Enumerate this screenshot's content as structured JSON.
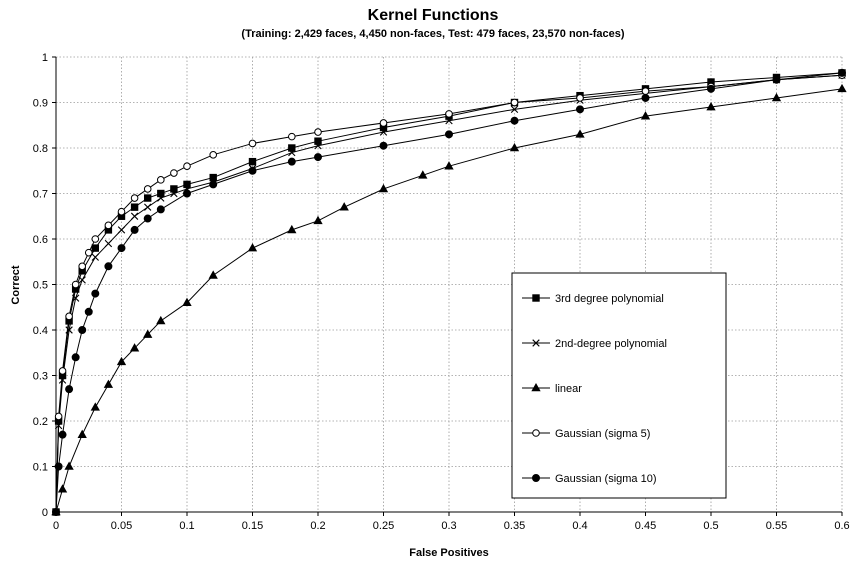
{
  "chart_data": {
    "type": "line",
    "title": "Kernel Functions",
    "subtitle": "(Training: 2,429 faces, 4,450 non-faces, Test: 479 faces, 23,570 non-faces)",
    "xlabel": "False Positives",
    "ylabel": "Correct",
    "xlim": [
      0,
      0.6
    ],
    "ylim": [
      0,
      1
    ],
    "x_ticks": [
      "0",
      "0.05",
      "0.1",
      "0.15",
      "0.2",
      "0.25",
      "0.3",
      "0.35",
      "0.4",
      "0.45",
      "0.5",
      "0.55",
      "0.6"
    ],
    "y_ticks": [
      "0",
      "0.1",
      "0.2",
      "0.3",
      "0.4",
      "0.5",
      "0.6",
      "0.7",
      "0.8",
      "0.9",
      "1"
    ],
    "grid": true,
    "legend_position": "right",
    "colors": {
      "series": "#000000",
      "grid": "#9a9a9a",
      "background": "#ffffff"
    },
    "series": [
      {
        "name": "3rd degree polynomial",
        "marker": "square",
        "x": [
          0,
          0.002,
          0.005,
          0.01,
          0.015,
          0.02,
          0.03,
          0.04,
          0.05,
          0.06,
          0.07,
          0.08,
          0.09,
          0.1,
          0.12,
          0.15,
          0.18,
          0.2,
          0.25,
          0.3,
          0.35,
          0.4,
          0.45,
          0.5,
          0.55,
          0.6
        ],
        "y": [
          0,
          0.2,
          0.3,
          0.42,
          0.49,
          0.53,
          0.58,
          0.62,
          0.65,
          0.67,
          0.69,
          0.7,
          0.71,
          0.72,
          0.735,
          0.77,
          0.8,
          0.815,
          0.845,
          0.87,
          0.9,
          0.915,
          0.93,
          0.945,
          0.955,
          0.965
        ]
      },
      {
        "name": "2nd-degree polynomial",
        "marker": "x",
        "x": [
          0,
          0.002,
          0.005,
          0.01,
          0.015,
          0.02,
          0.03,
          0.04,
          0.05,
          0.06,
          0.07,
          0.08,
          0.09,
          0.1,
          0.12,
          0.15,
          0.18,
          0.2,
          0.25,
          0.3,
          0.35,
          0.4,
          0.45,
          0.5,
          0.55,
          0.6
        ],
        "y": [
          0,
          0.19,
          0.29,
          0.4,
          0.47,
          0.51,
          0.56,
          0.59,
          0.62,
          0.65,
          0.67,
          0.69,
          0.7,
          0.71,
          0.725,
          0.755,
          0.79,
          0.805,
          0.835,
          0.86,
          0.885,
          0.905,
          0.92,
          0.935,
          0.95,
          0.96
        ]
      },
      {
        "name": "linear",
        "marker": "triangle",
        "x": [
          0,
          0.005,
          0.01,
          0.02,
          0.03,
          0.04,
          0.05,
          0.06,
          0.07,
          0.08,
          0.1,
          0.12,
          0.15,
          0.18,
          0.2,
          0.22,
          0.25,
          0.28,
          0.3,
          0.35,
          0.4,
          0.45,
          0.5,
          0.55,
          0.6
        ],
        "y": [
          0,
          0.05,
          0.1,
          0.17,
          0.23,
          0.28,
          0.33,
          0.36,
          0.39,
          0.42,
          0.46,
          0.52,
          0.58,
          0.62,
          0.64,
          0.67,
          0.71,
          0.74,
          0.76,
          0.8,
          0.83,
          0.87,
          0.89,
          0.91,
          0.93
        ]
      },
      {
        "name": "Gaussian (sigma 5)",
        "marker": "circle-open",
        "x": [
          0,
          0.002,
          0.005,
          0.01,
          0.015,
          0.02,
          0.025,
          0.03,
          0.04,
          0.05,
          0.06,
          0.07,
          0.08,
          0.09,
          0.1,
          0.12,
          0.15,
          0.18,
          0.2,
          0.25,
          0.3,
          0.35,
          0.4,
          0.45,
          0.5,
          0.55,
          0.6
        ],
        "y": [
          0,
          0.21,
          0.31,
          0.43,
          0.5,
          0.54,
          0.57,
          0.6,
          0.63,
          0.66,
          0.69,
          0.71,
          0.73,
          0.745,
          0.76,
          0.785,
          0.81,
          0.825,
          0.835,
          0.855,
          0.875,
          0.9,
          0.91,
          0.925,
          0.935,
          0.95,
          0.96
        ]
      },
      {
        "name": "Gaussian (sigma 10)",
        "marker": "circle",
        "x": [
          0,
          0.002,
          0.005,
          0.01,
          0.015,
          0.02,
          0.025,
          0.03,
          0.04,
          0.05,
          0.06,
          0.07,
          0.08,
          0.1,
          0.12,
          0.15,
          0.18,
          0.2,
          0.25,
          0.3,
          0.35,
          0.4,
          0.45,
          0.5,
          0.55,
          0.6
        ],
        "y": [
          0,
          0.1,
          0.17,
          0.27,
          0.34,
          0.4,
          0.44,
          0.48,
          0.54,
          0.58,
          0.62,
          0.645,
          0.665,
          0.7,
          0.72,
          0.75,
          0.77,
          0.78,
          0.805,
          0.83,
          0.86,
          0.885,
          0.91,
          0.93,
          0.95,
          0.965
        ]
      }
    ]
  }
}
